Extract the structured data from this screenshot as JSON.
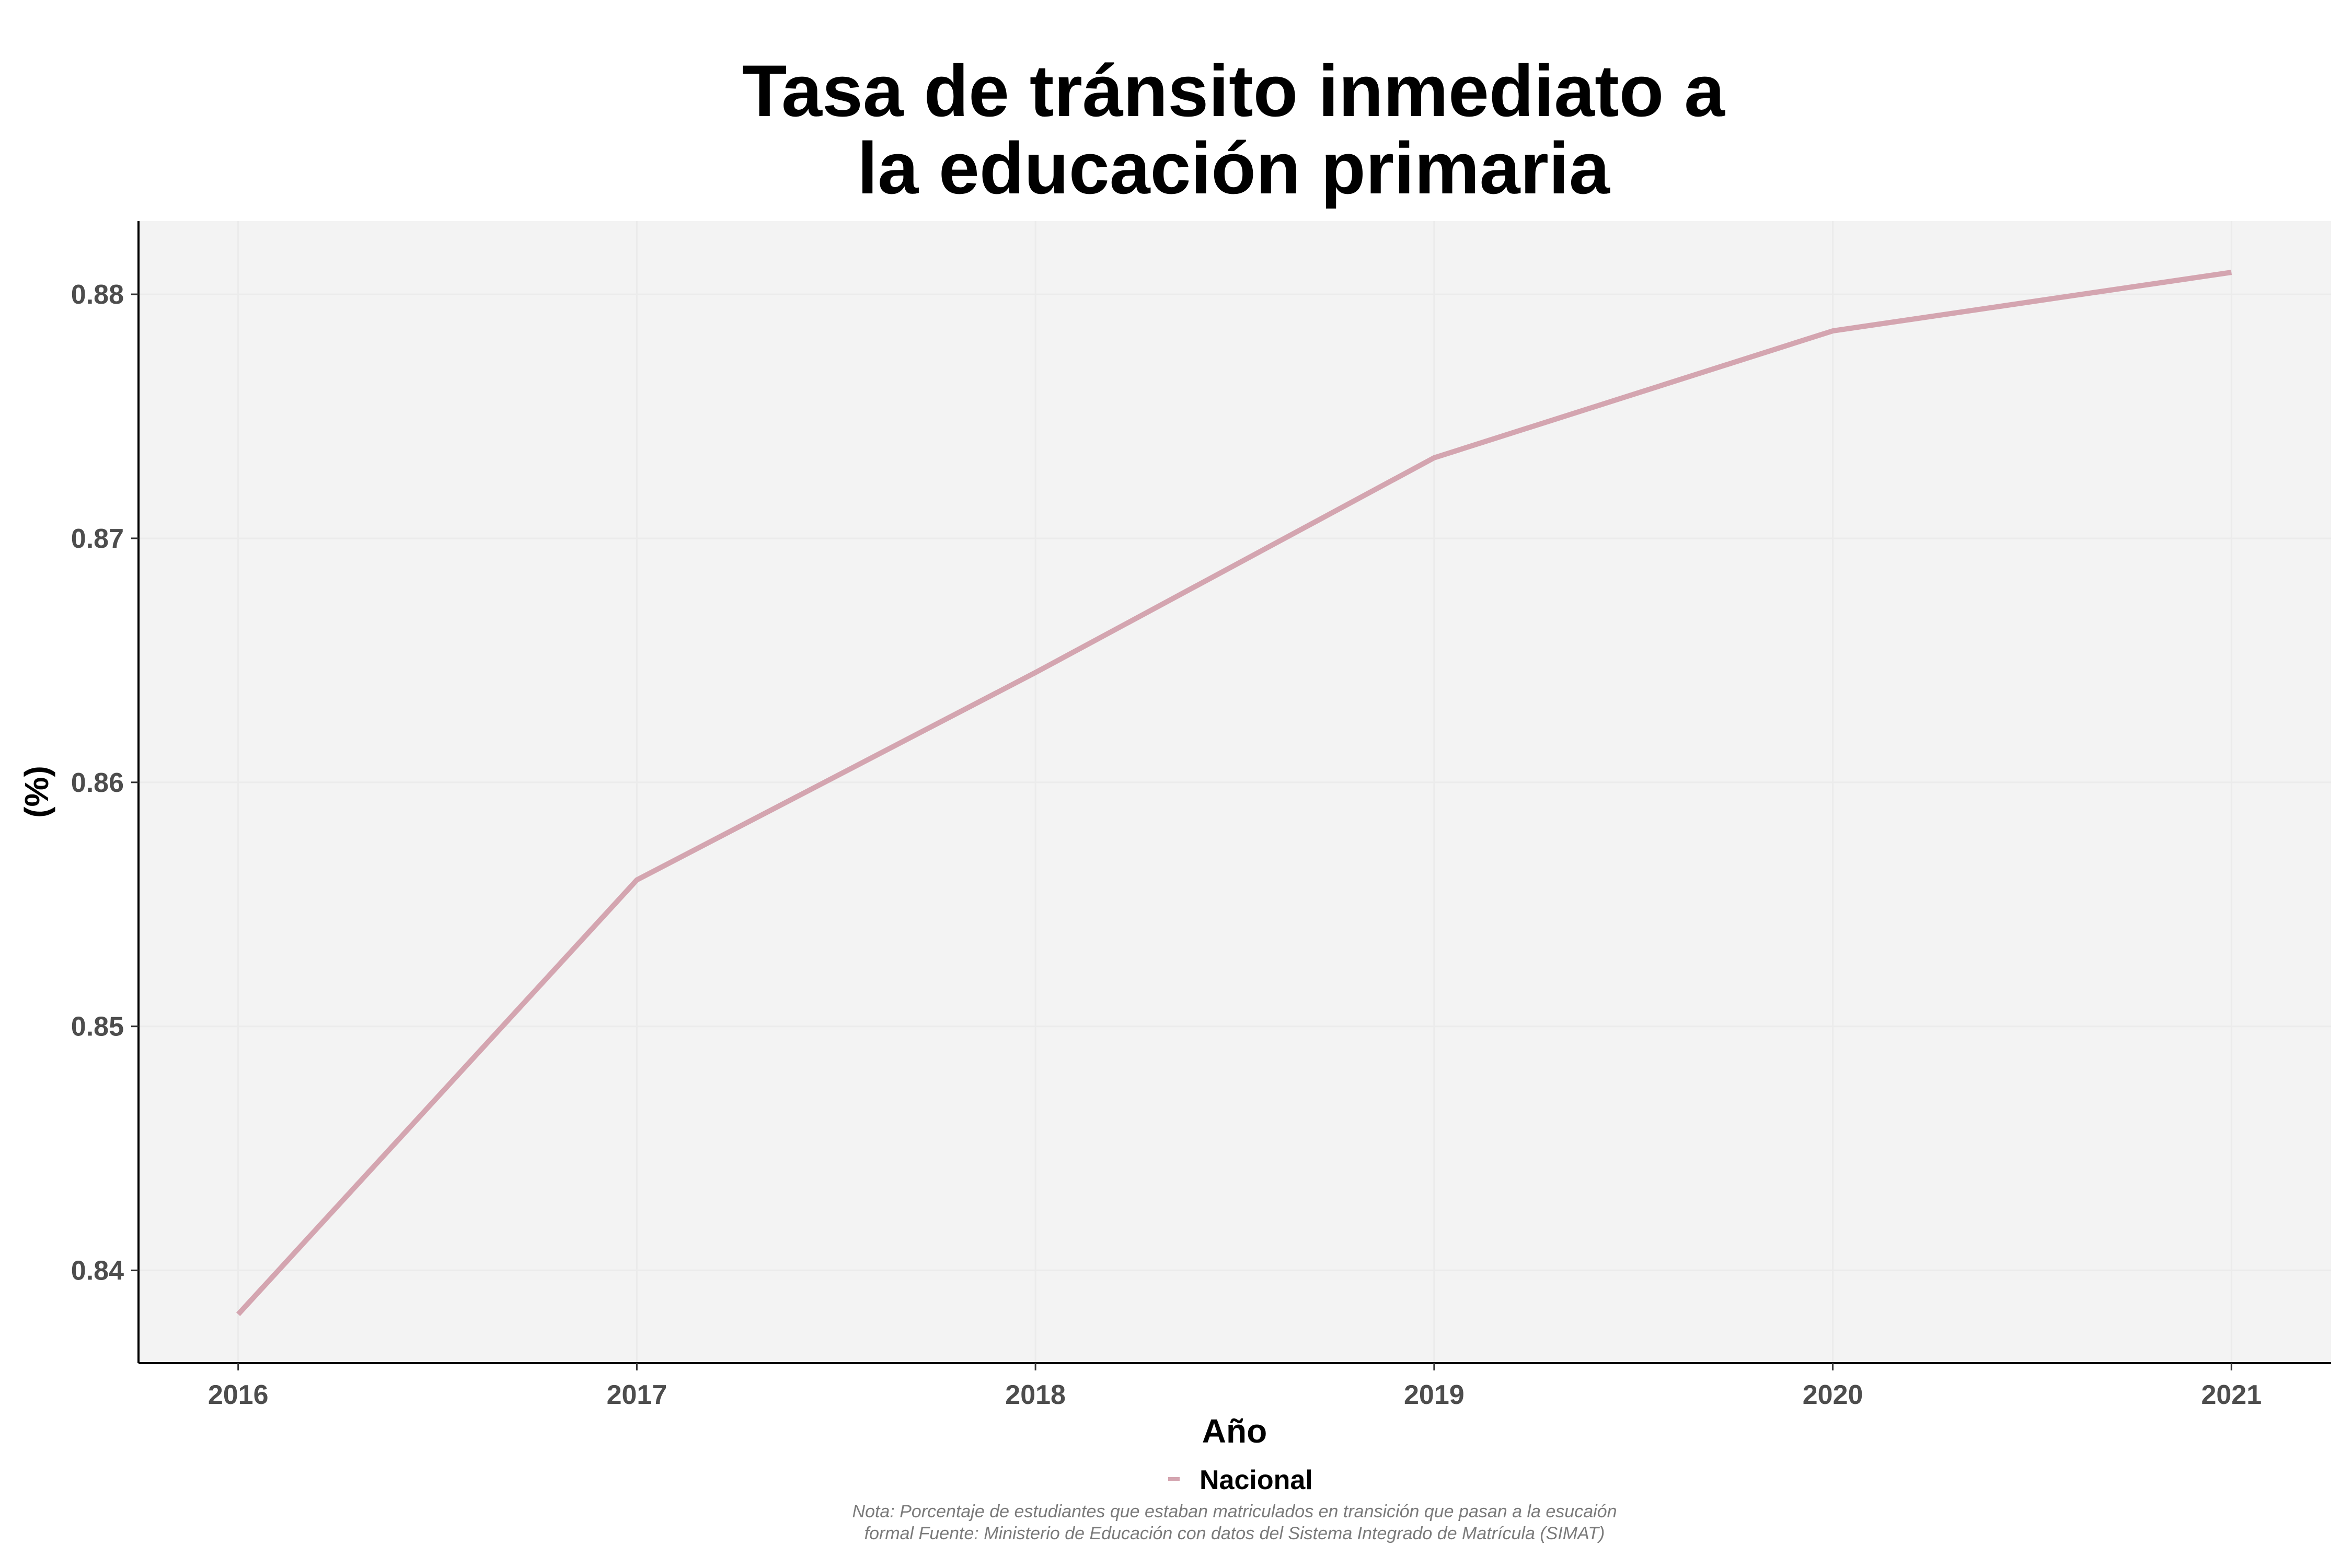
{
  "chart_data": {
    "type": "line",
    "title_lines": [
      "Tasa de tránsito inmediato a",
      "la educación primaria"
    ],
    "xlabel": "Año",
    "ylabel": "(%)",
    "x": [
      2016,
      2017,
      2018,
      2019,
      2020,
      2021
    ],
    "x_ticks": [
      "2016",
      "2017",
      "2018",
      "2019",
      "2020",
      "2021"
    ],
    "xlim": [
      2015.75,
      2021.25
    ],
    "y_ticks": [
      "0.84",
      "0.85",
      "0.86",
      "0.87",
      "0.88"
    ],
    "ylim": [
      0.8362,
      0.883
    ],
    "series": [
      {
        "name": "Nacional",
        "color": "#d4a5b0",
        "values": [
          0.8382,
          0.856,
          0.8645,
          0.8733,
          0.8785,
          0.8809
        ]
      }
    ],
    "grid": true,
    "legend_position": "bottom",
    "caption_lines": [
      "Nota: Porcentaje de estudiantes que estaban matriculados en transición que pasan a la esucaión",
      "formal Fuente: Ministerio de Educación con datos del Sistema Integrado de Matrícula (SIMAT)"
    ],
    "colors": {
      "panel_background": "#f3f3f3",
      "grid": "#ebebeb",
      "axis": "#000000"
    }
  }
}
